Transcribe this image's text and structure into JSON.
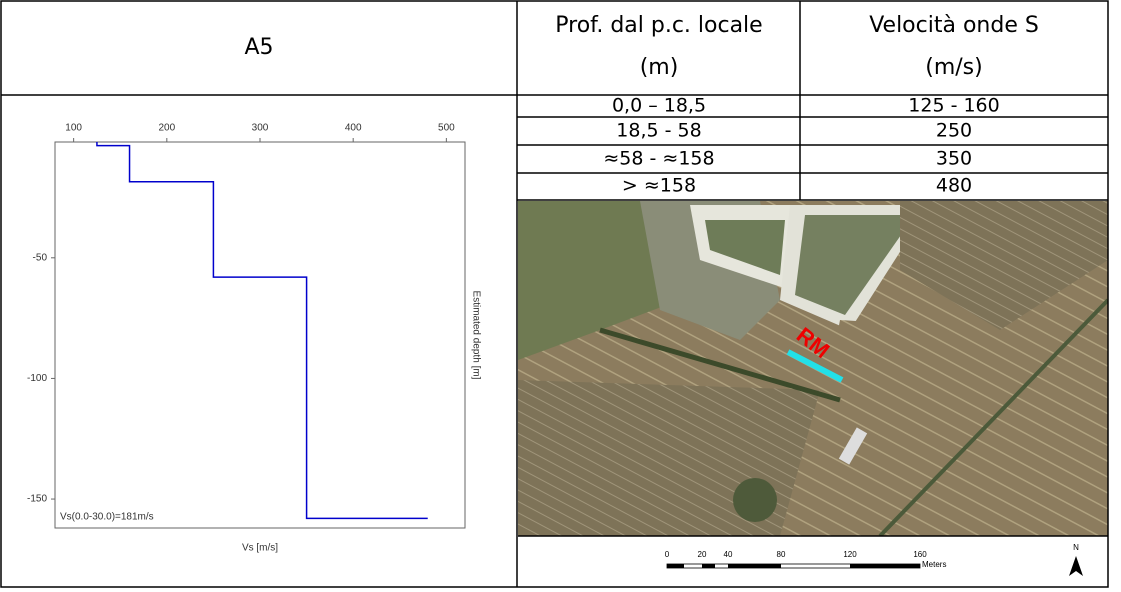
{
  "table": {
    "title": "A5",
    "columns": [
      [
        "Prof. dal p.c. locale",
        "(m)"
      ],
      [
        "Velocità onde S",
        "(m/s)"
      ]
    ],
    "rows": [
      [
        "0,0 – 18,5",
        "125 - 160"
      ],
      [
        "18,5 - 58",
        "250"
      ],
      [
        "≈58 - ≈158",
        "350"
      ],
      [
        "> ≈158",
        "480"
      ]
    ]
  },
  "chart_data": {
    "type": "line",
    "x_label": "Vs [m/s]",
    "y_label": "Estimated depth [m]",
    "annotation": "Vs(0.0-30.0)=181m/s",
    "xlim": [
      80,
      520
    ],
    "xticks": [
      100,
      200,
      300,
      400,
      500
    ],
    "ylim": [
      -162,
      -2
    ],
    "yticks": [
      -50,
      -100,
      -150
    ],
    "series": [
      {
        "color": "#0000cc",
        "x": [
          125,
          125,
          160,
          160,
          250,
          250,
          350,
          350,
          480
        ],
        "values": [
          -2,
          -3.5,
          -3.5,
          -18.5,
          -18.5,
          -58,
          -58,
          -158,
          -158
        ]
      }
    ]
  },
  "map": {
    "marker_label": "RM",
    "scale_labels": [
      "0",
      "20",
      "40",
      "80",
      "120",
      "160"
    ],
    "scale_unit": "Meters",
    "north": "N"
  }
}
